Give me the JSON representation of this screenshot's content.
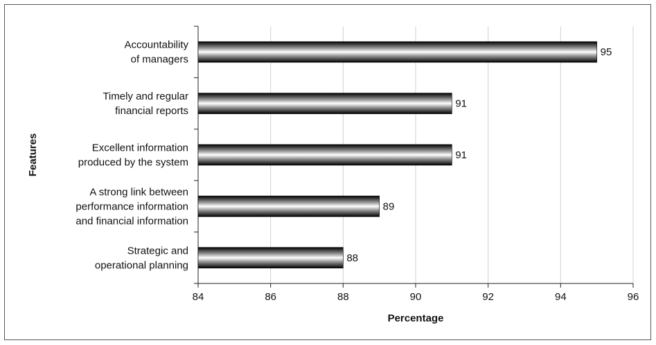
{
  "chart_data": {
    "type": "bar",
    "orientation": "horizontal",
    "categories": [
      [
        "Accountability",
        "of managers"
      ],
      [
        "Timely and regular",
        "financial reports"
      ],
      [
        "Excellent information",
        "produced by the system"
      ],
      [
        "A strong link between",
        "performance information",
        "and financial information"
      ],
      [
        "Strategic and",
        "operational planning"
      ]
    ],
    "values": [
      95,
      91,
      91,
      89,
      88
    ],
    "xlabel": "Percentage",
    "ylabel": "Features",
    "xlim": [
      84,
      96
    ],
    "xticks": [
      84,
      86,
      88,
      90,
      92,
      94,
      96
    ],
    "grid": "vertical",
    "bar_style": "metallic-gradient"
  }
}
